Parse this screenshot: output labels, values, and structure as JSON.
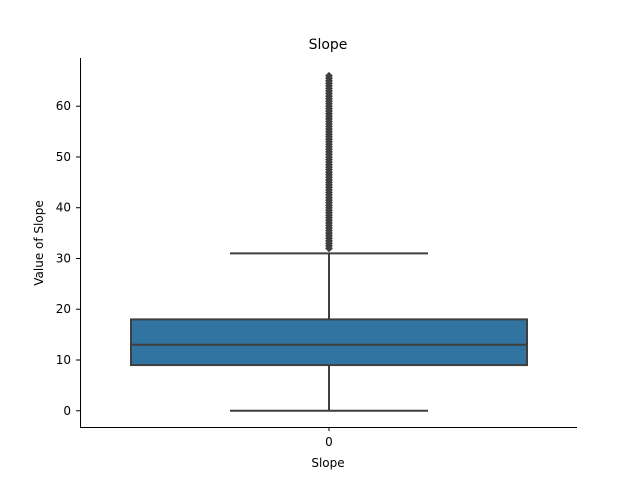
{
  "chart_data": {
    "type": "box",
    "title": "Slope",
    "xlabel": "Slope",
    "ylabel": "Value of Slope",
    "categories": [
      "0"
    ],
    "ylim": [
      -3.2,
      69.5
    ],
    "yticks": [
      0,
      10,
      20,
      30,
      40,
      50,
      60
    ],
    "box": {
      "min": 0,
      "q1": 9,
      "median": 13,
      "q3": 18,
      "max": 31,
      "outliers": [
        32,
        32.5,
        33,
        33.5,
        34,
        34.5,
        35,
        35.5,
        36,
        36.5,
        37,
        37.5,
        38,
        38.5,
        39,
        39.5,
        40,
        40.5,
        41,
        41.5,
        42,
        42.5,
        43,
        43.5,
        44,
        44.5,
        45,
        45.5,
        46,
        46.5,
        47,
        47.5,
        48,
        48.5,
        49,
        49.5,
        50,
        50.5,
        51,
        51.5,
        52,
        52.5,
        53,
        53.5,
        54,
        54.5,
        55,
        55.5,
        56,
        56.5,
        57,
        57.5,
        58,
        58.5,
        59,
        59.5,
        60,
        60.5,
        61,
        61.5,
        62,
        62.5,
        63,
        63.5,
        64,
        64.5,
        65,
        65.5,
        66
      ]
    },
    "colors": {
      "box_fill": "#3274a1",
      "line": "#3f3f3f"
    },
    "grid": false,
    "legend": "none"
  }
}
